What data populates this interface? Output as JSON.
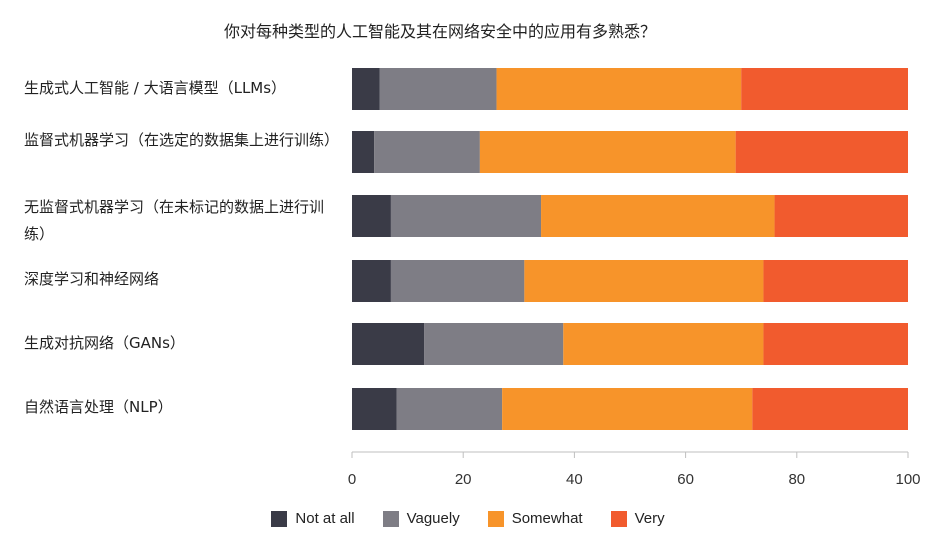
{
  "chart_data": {
    "type": "bar",
    "orientation": "horizontal",
    "stacked": true,
    "title": "你对每种类型的人工智能及其在网络安全中的应用有多熟悉？",
    "xlabel": "",
    "ylabel": "",
    "xlim": [
      0,
      100
    ],
    "xticks": [
      0,
      20,
      40,
      60,
      80,
      100
    ],
    "grid": false,
    "legend_position": "bottom",
    "categories": [
      "生成式人工智能 / 大语言模型（LLMs）",
      "监督式机器学习（在选定的数据集上进行训练）",
      "无监督式机器学习（在未标记的数据上进行训练）",
      "深度学习和神经网络",
      "生成对抗网络（GANs）",
      "自然语言处理（NLP）"
    ],
    "series": [
      {
        "name": "Not at all",
        "color": "#3a3b47",
        "values": [
          5,
          4,
          7,
          7,
          13,
          8
        ]
      },
      {
        "name": "Vaguely",
        "color": "#7e7d85",
        "values": [
          21,
          19,
          27,
          24,
          25,
          19
        ]
      },
      {
        "name": "Somewhat",
        "color": "#f7942a",
        "values": [
          44,
          46,
          42,
          43,
          36,
          45
        ]
      },
      {
        "name": "Very",
        "color": "#f15b2e",
        "values": [
          30,
          31,
          24,
          26,
          26,
          28
        ]
      }
    ]
  }
}
